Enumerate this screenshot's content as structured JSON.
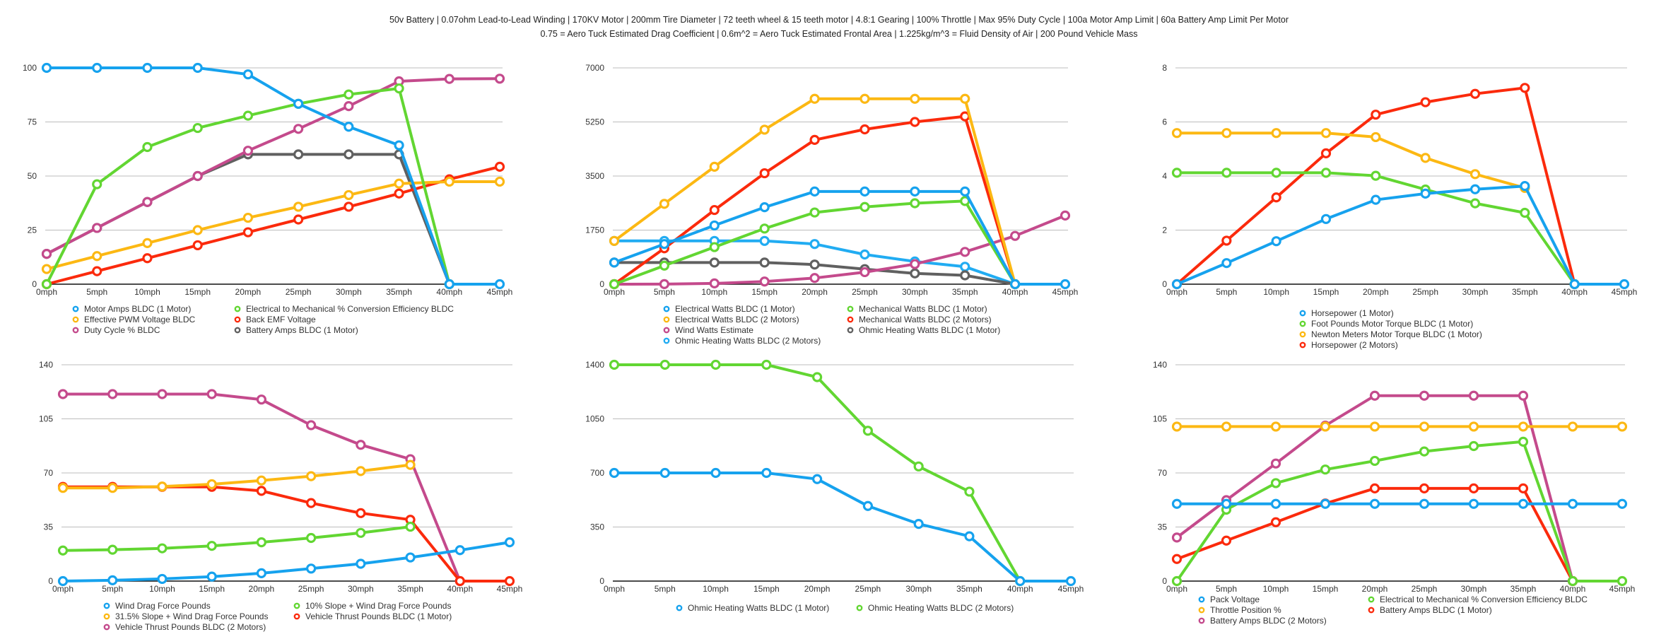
{
  "header": {
    "line1": "50v Battery | 0.07ohm Lead-to-Lead Winding | 170KV Motor | 200mm Tire Diameter | 72 teeth wheel & 15 teeth motor | 4.8:1 Gearing | 100% Throttle | Max 95% Duty Cycle | 100a Motor Amp Limit | 60a Battery Amp Limit Per Motor",
    "line2": "0.75 = Aero Tuck Estimated Drag Coefficient | 0.6m^2 = Aero Tuck Estimated Frontal Area | 1.225kg/m^3 = Fluid Density of Air | 200 Pound Vehicle Mass"
  },
  "colors": {
    "blue": "#16a2ee",
    "yellow": "#fcb813",
    "purple": "#c44a8c",
    "green": "#62d632",
    "red": "#fb2a0c",
    "gray": "#606060",
    "lightblue": "#21acf2",
    "grid": "#bdbdbd",
    "axis": "#111111"
  },
  "chart_data": [
    {
      "id": "motor-electrical",
      "type": "line",
      "title": "",
      "xlabel": "",
      "ylabel": "",
      "x": [
        "0mph",
        "5mph",
        "10mph",
        "15mph",
        "20mph",
        "25mph",
        "30mph",
        "35mph",
        "40mph",
        "45mph"
      ],
      "ylim": [
        0,
        100
      ],
      "yticks": [
        0,
        25,
        50,
        75,
        100
      ],
      "grid": true,
      "legend_position": "bottom",
      "legend_columns": 2,
      "series": [
        {
          "name": "Motor Amps BLDC (1 Motor)",
          "color": "blue",
          "values": [
            100,
            100,
            100,
            100,
            97,
            83.4,
            72.8,
            64.2,
            0,
            0
          ]
        },
        {
          "name": "Electrical to Mechanical % Conversion Efficiency BLDC",
          "color": "green",
          "values": [
            0,
            46.2,
            63.4,
            72.2,
            77.9,
            83.4,
            87.7,
            90.5,
            0,
            null
          ]
        },
        {
          "name": "Effective PWM Voltage BLDC",
          "color": "yellow",
          "values": [
            7,
            13,
            19,
            25,
            30.7,
            35.8,
            41.2,
            46.5,
            47.4,
            47.4
          ]
        },
        {
          "name": "Back EMF Voltage",
          "color": "red",
          "values": [
            0,
            6,
            12,
            18,
            24,
            29.9,
            35.8,
            41.9,
            48.5,
            54.3
          ]
        },
        {
          "name": "Duty Cycle % BLDC",
          "color": "purple",
          "values": [
            14,
            26,
            38,
            50,
            61.7,
            71.8,
            82.3,
            93.8,
            94.9,
            95
          ]
        },
        {
          "name": "Battery Amps BLDC (1 Motor)",
          "color": "gray",
          "values": [
            14,
            26,
            38,
            50,
            60,
            60,
            60,
            60,
            0,
            null
          ]
        }
      ],
      "legend_order": [
        0,
        2,
        4,
        1,
        3,
        5
      ]
    },
    {
      "id": "watts",
      "type": "line",
      "title": "",
      "xlabel": "",
      "ylabel": "",
      "x": [
        "0mph",
        "5mph",
        "10mph",
        "15mph",
        "20mph",
        "25mph",
        "30mph",
        "35mph",
        "40mph",
        "45mph"
      ],
      "ylim": [
        0,
        7000
      ],
      "yticks": [
        0,
        1750,
        3500,
        5250,
        7000
      ],
      "grid": true,
      "legend_position": "bottom",
      "legend_columns": 2,
      "series": [
        {
          "name": "Electrical Watts BLDC (1 Motor)",
          "color": "blue",
          "values": [
            700,
            1300,
            1900,
            2490,
            3000,
            3000,
            3000,
            3000,
            0,
            0
          ]
        },
        {
          "name": "Mechanical Watts BLDC (1 Motor)",
          "color": "green",
          "values": [
            0,
            600,
            1200,
            1800,
            2320,
            2500,
            2620,
            2690,
            0,
            null
          ]
        },
        {
          "name": "Electrical Watts BLDC (2 Motors)",
          "color": "yellow",
          "values": [
            1400,
            2600,
            3800,
            5000,
            6000,
            6000,
            6000,
            6000,
            0,
            null
          ]
        },
        {
          "name": "Mechanical Watts BLDC (2 Motors)",
          "color": "red",
          "values": [
            0,
            1160,
            2400,
            3590,
            4670,
            5010,
            5250,
            5430,
            0,
            null
          ]
        },
        {
          "name": "Wind Watts Estimate",
          "color": "purple",
          "values": [
            0,
            3,
            25,
            85,
            200,
            390,
            650,
            1045,
            1563,
            2221
          ]
        },
        {
          "name": "Ohmic Heating Watts BLDC (1 Motor)",
          "color": "gray",
          "values": [
            700,
            700,
            700,
            700,
            635,
            488,
            348,
            286,
            0,
            null
          ]
        },
        {
          "name": "Ohmic Heating Watts BLDC (2 Motors)",
          "color": "lightblue",
          "values": [
            1400,
            1400,
            1400,
            1400,
            1300,
            960,
            735,
            565,
            0,
            null
          ]
        }
      ],
      "legend_order": [
        0,
        2,
        4,
        6,
        1,
        3,
        5
      ]
    },
    {
      "id": "horsepower-torque",
      "type": "line",
      "title": "",
      "xlabel": "",
      "ylabel": "",
      "x": [
        "0mph",
        "5mph",
        "10mph",
        "15mph",
        "20mph",
        "25mph",
        "30mph",
        "35mph",
        "40mph",
        "45mph"
      ],
      "ylim": [
        0,
        8
      ],
      "yticks": [
        0,
        2,
        4,
        6,
        8
      ],
      "grid": true,
      "legend_position": "bottom",
      "legend_columns": 1,
      "series": [
        {
          "name": "Horsepower (1 Motor)",
          "color": "blue",
          "values": [
            0,
            0.78,
            1.59,
            2.41,
            3.12,
            3.35,
            3.51,
            3.63,
            0,
            0
          ]
        },
        {
          "name": "Foot Pounds Motor Torque BLDC (1 Motor)",
          "color": "green",
          "values": [
            4.12,
            4.12,
            4.12,
            4.12,
            4.01,
            3.5,
            2.99,
            2.64,
            0,
            null
          ]
        },
        {
          "name": "Newton Meters Motor Torque BLDC (1 Motor)",
          "color": "yellow",
          "values": [
            5.59,
            5.59,
            5.59,
            5.59,
            5.44,
            4.67,
            4.07,
            3.56,
            null,
            null
          ]
        },
        {
          "name": "Horsepower (2 Motors)",
          "color": "red",
          "values": [
            0,
            1.61,
            3.21,
            4.84,
            6.27,
            6.73,
            7.04,
            7.26,
            0,
            null
          ]
        }
      ],
      "legend_order": [
        0,
        1,
        2,
        3
      ]
    },
    {
      "id": "thrust-drag",
      "type": "line",
      "title": "",
      "xlabel": "",
      "ylabel": "",
      "x": [
        "0mph",
        "5mph",
        "10mph",
        "15mph",
        "20mph",
        "25mph",
        "30mph",
        "35mph",
        "40mph",
        "45mph"
      ],
      "ylim": [
        0,
        140
      ],
      "yticks": [
        0,
        35,
        70,
        105,
        140
      ],
      "grid": true,
      "legend_position": "bottom",
      "legend_columns": 2,
      "series": [
        {
          "name": "Wind Drag Force Pounds",
          "color": "blue",
          "values": [
            0,
            0.5,
            1.4,
            2.9,
            5.1,
            8.1,
            11.2,
            15.3,
            20,
            25.1
          ]
        },
        {
          "name": "10% Slope + Wind Drag Force Pounds",
          "color": "green",
          "values": [
            19.8,
            20.3,
            21.2,
            22.8,
            25.1,
            27.9,
            31.2,
            35.2,
            null,
            null
          ]
        },
        {
          "name": "31.5% Slope + Wind Drag Force Pounds",
          "color": "yellow",
          "values": [
            60.3,
            60.3,
            61.2,
            62.7,
            65.1,
            67.9,
            71.2,
            75.2,
            null,
            null
          ]
        },
        {
          "name": "Vehicle Thrust Pounds BLDC (1 Motor)",
          "color": "red",
          "values": [
            61,
            61,
            61,
            61,
            58.4,
            50.5,
            44,
            39.7,
            0,
            0
          ]
        },
        {
          "name": "Vehicle Thrust Pounds BLDC (2 Motors)",
          "color": "purple",
          "values": [
            121,
            121,
            121,
            121,
            117.5,
            100.9,
            88.2,
            78.9,
            0,
            null
          ]
        }
      ],
      "legend_order": [
        0,
        2,
        4,
        1,
        3
      ]
    },
    {
      "id": "ohmic-heating",
      "type": "line",
      "title": "",
      "xlabel": "",
      "ylabel": "",
      "x": [
        "0mph",
        "5mph",
        "10mph",
        "15mph",
        "20mph",
        "25mph",
        "30mph",
        "35mph",
        "40mph",
        "45mph"
      ],
      "ylim": [
        0,
        1400
      ],
      "yticks": [
        0,
        350,
        700,
        1050,
        1400
      ],
      "grid": true,
      "legend_position": "bottom",
      "legend_columns": 2,
      "series": [
        {
          "name": "Ohmic Heating Watts BLDC (1 Motor)",
          "color": "blue",
          "values": [
            700,
            700,
            700,
            700,
            660,
            486,
            370,
            290,
            0,
            0
          ]
        },
        {
          "name": "Ohmic Heating Watts BLDC (2 Motors)",
          "color": "green",
          "values": [
            1400,
            1400,
            1400,
            1400,
            1320,
            973,
            742,
            579,
            0,
            null
          ]
        }
      ],
      "legend_order": [
        0,
        1
      ]
    },
    {
      "id": "battery-throttle",
      "type": "line",
      "title": "",
      "xlabel": "",
      "ylabel": "",
      "x": [
        "0mph",
        "5mph",
        "10mph",
        "15mph",
        "20mph",
        "25mph",
        "30mph",
        "35mph",
        "40mph",
        "45mph"
      ],
      "ylim": [
        0,
        140
      ],
      "yticks": [
        0,
        35,
        70,
        105,
        140
      ],
      "grid": true,
      "legend_position": "bottom",
      "legend_columns": 2,
      "series": [
        {
          "name": "Pack Voltage",
          "color": "blue",
          "values": [
            50,
            50,
            50,
            50,
            50,
            50,
            50,
            50,
            50,
            50
          ]
        },
        {
          "name": "Electrical to Mechanical % Conversion Efficiency BLDC",
          "color": "green",
          "values": [
            0,
            46.2,
            63.4,
            72.2,
            77.8,
            83.9,
            87.4,
            90.2,
            0,
            0
          ]
        },
        {
          "name": "Throttle Position %",
          "color": "yellow",
          "values": [
            100,
            100,
            100,
            100,
            100,
            100,
            100,
            100,
            100,
            100
          ]
        },
        {
          "name": "Battery Amps BLDC (1 Motor)",
          "color": "red",
          "values": [
            14.3,
            26.2,
            38.1,
            50.2,
            60,
            60,
            60,
            60,
            0,
            null
          ]
        },
        {
          "name": "Battery Amps BLDC (2 Motors)",
          "color": "purple",
          "values": [
            28.2,
            52.4,
            76.1,
            100.6,
            120,
            120,
            120,
            120,
            0,
            null
          ]
        }
      ],
      "legend_order": [
        0,
        2,
        4,
        1,
        3
      ]
    }
  ]
}
